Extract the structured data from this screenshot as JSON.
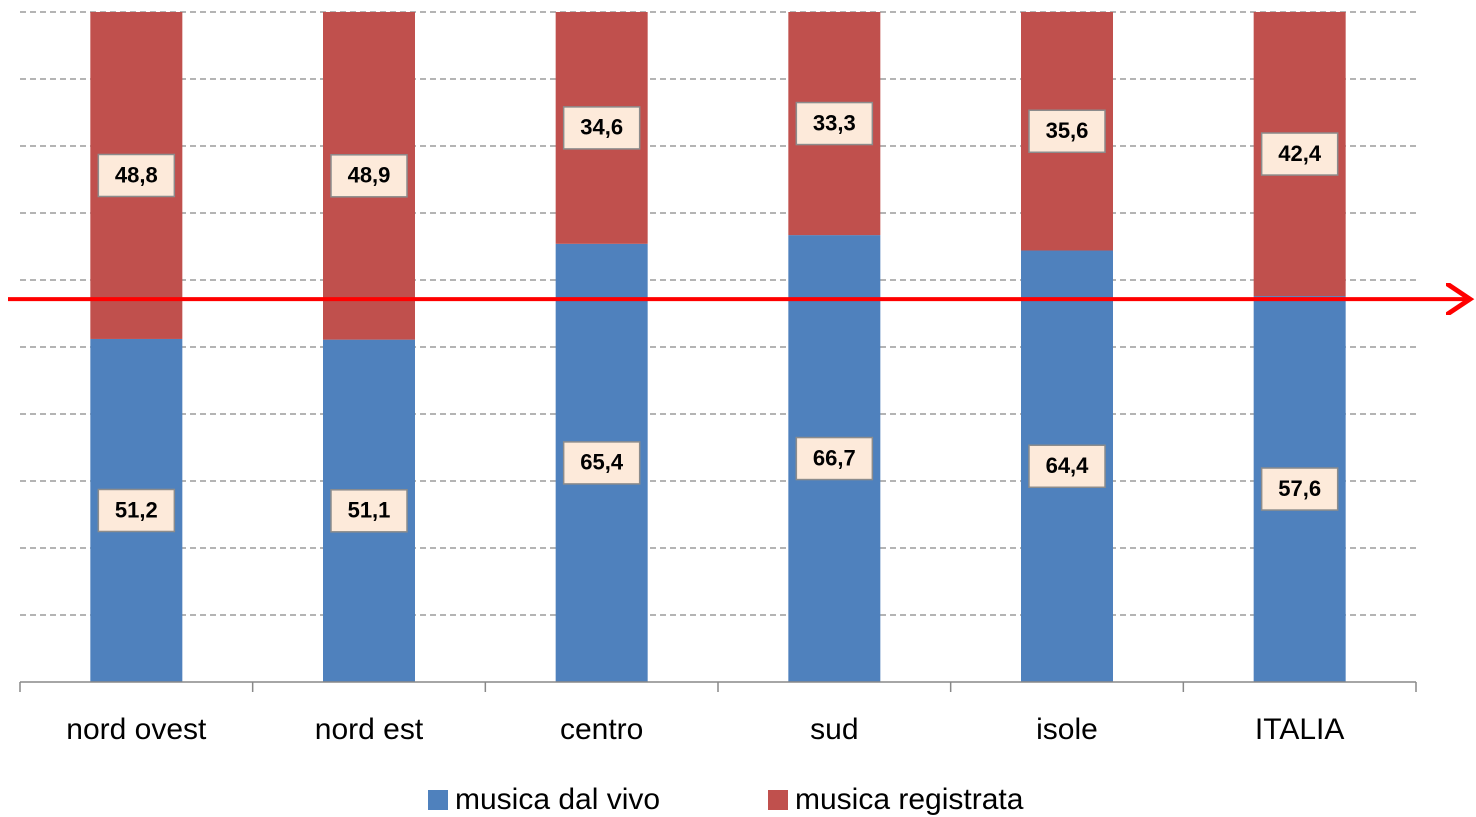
{
  "chart_data": {
    "type": "stacked_bar",
    "categories": [
      "nord ovest",
      "nord est",
      "centro",
      "sud",
      "isole",
      "ITALIA"
    ],
    "series": [
      {
        "name": "musica dal vivo",
        "color": "#4f81bd",
        "values": [
          51.2,
          51.1,
          65.4,
          66.7,
          64.4,
          57.6
        ],
        "value_labels": [
          "51,2",
          "51,1",
          "65,4",
          "66,7",
          "64,4",
          "57,6"
        ]
      },
      {
        "name": "musica registrata",
        "color": "#c0504d",
        "values": [
          48.8,
          48.9,
          34.6,
          33.3,
          35.6,
          42.4
        ],
        "value_labels": [
          "48,8",
          "48,9",
          "34,6",
          "33,3",
          "35,6",
          "42,4"
        ]
      }
    ],
    "ylim": [
      0,
      100
    ],
    "yticks": [
      0,
      10,
      20,
      30,
      40,
      50,
      60,
      70,
      80,
      90,
      100
    ],
    "grid": true,
    "legend": "bottom"
  }
}
